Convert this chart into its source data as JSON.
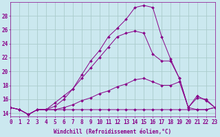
{
  "xlabel": "Windchill (Refroidissement éolien,°C)",
  "bg_color": "#cbe8ef",
  "grid_color": "#aacccc",
  "line_color": "#880088",
  "hours": [
    0,
    1,
    2,
    3,
    4,
    5,
    6,
    7,
    8,
    9,
    10,
    11,
    12,
    13,
    14,
    15,
    16,
    17,
    18,
    19,
    20,
    21,
    22,
    23
  ],
  "curve1": [
    14.8,
    14.5,
    13.8,
    14.5,
    14.5,
    15.5,
    16.5,
    17.5,
    19.5,
    21.5,
    23.0,
    25.0,
    26.2,
    27.5,
    29.2,
    29.5,
    29.2,
    25.0,
    21.8,
    19.0,
    14.8,
    16.2,
    16.0,
    14.8
  ],
  "curve2": [
    14.8,
    14.5,
    13.8,
    14.5,
    14.5,
    15.0,
    16.0,
    17.5,
    19.0,
    20.5,
    22.0,
    23.5,
    25.0,
    25.5,
    25.8,
    25.5,
    22.5,
    21.5,
    21.5,
    19.0,
    14.8,
    14.5,
    14.5,
    14.8
  ],
  "curve3": [
    14.8,
    14.5,
    13.8,
    14.5,
    14.5,
    14.5,
    14.8,
    15.2,
    15.8,
    16.2,
    16.8,
    17.2,
    17.8,
    18.2,
    18.8,
    19.0,
    18.5,
    18.0,
    18.0,
    18.5,
    14.8,
    16.5,
    15.8,
    14.8
  ],
  "curve4": [
    14.8,
    14.5,
    13.8,
    14.5,
    14.5,
    14.5,
    14.5,
    14.5,
    14.5,
    14.5,
    14.5,
    14.5,
    14.5,
    14.5,
    14.5,
    14.5,
    14.5,
    14.5,
    14.5,
    14.5,
    14.5,
    14.5,
    14.5,
    14.8
  ],
  "ylim": [
    13.5,
    30
  ],
  "yticks": [
    14,
    16,
    18,
    20,
    22,
    24,
    26,
    28
  ],
  "xlim": [
    0,
    23
  ],
  "tick_fontsize": 5.5,
  "label_fontsize": 5.5
}
